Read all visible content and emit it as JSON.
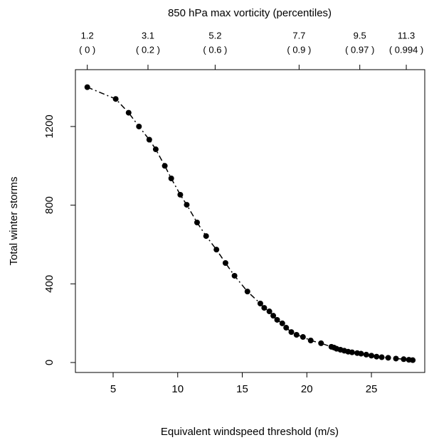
{
  "chart_data": {
    "type": "scatter",
    "x_label": "Equivalent windspeed threshold (m/s)",
    "y_label": "Total winter storms",
    "x2_label": "850 hPa max vorticity (percentiles)",
    "x": [
      3.0,
      5.2,
      6.2,
      7.0,
      7.8,
      8.3,
      9.0,
      9.5,
      10.2,
      10.7,
      11.5,
      12.2,
      13.0,
      13.7,
      14.4,
      15.4,
      16.4,
      16.7,
      17.1,
      17.4,
      17.7,
      18.1,
      18.4,
      18.8,
      19.2,
      19.7,
      20.3,
      21.1,
      21.9,
      22.1,
      22.3,
      22.6,
      22.9,
      23.2,
      23.5,
      23.9,
      24.2,
      24.6,
      25.0,
      25.4,
      25.8,
      26.3,
      26.9,
      27.5,
      27.9,
      28.2
    ],
    "values": [
      1400,
      1340,
      1270,
      1200,
      1133,
      1084,
      1000,
      936,
      853,
      802,
      712,
      643,
      574,
      506,
      441,
      361,
      300,
      278,
      260,
      238,
      217,
      199,
      177,
      155,
      141,
      130,
      112,
      98,
      80,
      76,
      70,
      65,
      60,
      55,
      52,
      48,
      45,
      40,
      35,
      30,
      27,
      24,
      20,
      17,
      14,
      12
    ],
    "color": "#000000",
    "xlim": [
      2.08,
      29.13
    ],
    "ylim": [
      -50.6,
      1489
    ],
    "xticks": [
      5,
      10,
      15,
      20,
      25
    ],
    "yticks": [
      0,
      400,
      800,
      1200
    ],
    "x2ticks": [
      {
        "value": 3.0,
        "label": "1.2",
        "percentile": "( 0 )"
      },
      {
        "value": 7.7,
        "label": "3.1",
        "percentile": "( 0.2 )"
      },
      {
        "value": 12.9,
        "label": "5.2",
        "percentile": "( 0.6 )"
      },
      {
        "value": 19.4,
        "label": "7.7",
        "percentile": "( 0.9 )"
      },
      {
        "value": 24.1,
        "label": "9.5",
        "percentile": "( 0.97 )"
      },
      {
        "value": 27.7,
        "label": "11.3",
        "percentile": "( 0.994 )"
      }
    ]
  }
}
